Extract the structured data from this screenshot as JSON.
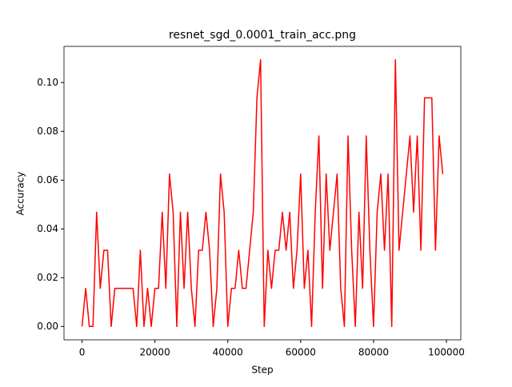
{
  "chart_data": {
    "type": "line",
    "title": "resnet_sgd_0.0001_train_acc.png",
    "x_label": "Step",
    "y_label": "Accuracy",
    "color": "#ff0000",
    "x": [
      0,
      1000,
      2000,
      3000,
      4000,
      5000,
      6000,
      7000,
      8000,
      9000,
      10000,
      11000,
      12000,
      13000,
      14000,
      15000,
      16000,
      17000,
      18000,
      19000,
      20000,
      21000,
      22000,
      23000,
      24000,
      25000,
      26000,
      27000,
      28000,
      29000,
      30000,
      31000,
      32000,
      33000,
      34000,
      35000,
      36000,
      37000,
      38000,
      39000,
      40000,
      41000,
      42000,
      43000,
      44000,
      45000,
      46000,
      47000,
      48000,
      49000,
      50000,
      51000,
      52000,
      53000,
      54000,
      55000,
      56000,
      57000,
      58000,
      59000,
      60000,
      61000,
      62000,
      63000,
      64000,
      65000,
      66000,
      67000,
      68000,
      69000,
      70000,
      71000,
      72000,
      73000,
      74000,
      75000,
      76000,
      77000,
      78000,
      79000,
      80000,
      81000,
      82000,
      83000,
      84000,
      85000,
      86000,
      87000,
      88000,
      89000,
      90000,
      91000,
      92000,
      93000,
      94000,
      95000,
      96000,
      97000,
      98000,
      99000
    ],
    "values": [
      0,
      0.015625,
      0,
      0,
      0.046875,
      0.015625,
      0.03125,
      0.03125,
      0,
      0.015625,
      0.015625,
      0.015625,
      0.015625,
      0.015625,
      0.015625,
      0,
      0.03125,
      0,
      0.015625,
      0,
      0.015625,
      0.015625,
      0.046875,
      0.015625,
      0.0625,
      0.046875,
      0,
      0.046875,
      0.015625,
      0.046875,
      0.015625,
      0,
      0.03125,
      0.03125,
      0.046875,
      0.03125,
      0,
      0.015625,
      0.0625,
      0.046875,
      0,
      0.015625,
      0.015625,
      0.03125,
      0.015625,
      0.015625,
      0.03125,
      0.046875,
      0.09375,
      0.109375,
      0,
      0.03125,
      0.015625,
      0.03125,
      0.03125,
      0.046875,
      0.03125,
      0.046875,
      0.015625,
      0.03125,
      0.0625,
      0.015625,
      0.03125,
      0,
      0.046875,
      0.078125,
      0.015625,
      0.0625,
      0.03125,
      0.046875,
      0.0625,
      0.015625,
      0,
      0.078125,
      0.03125,
      0,
      0.046875,
      0.015625,
      0.078125,
      0.03125,
      0,
      0.046875,
      0.0625,
      0.03125,
      0.0625,
      0,
      0.109375,
      0.03125,
      0.046875,
      0.0625,
      0.078125,
      0.046875,
      0.078125,
      0.03125,
      0.09375,
      0.09375,
      0.09375,
      0.03125,
      0.078125,
      0.0625
    ],
    "xlim": [
      -4950,
      103950
    ],
    "ylim": [
      -0.00547,
      0.11484
    ],
    "xticks": [
      0,
      20000,
      40000,
      60000,
      80000,
      100000
    ],
    "yticks": [
      {
        "value": 0,
        "label": "0.00"
      },
      {
        "value": 0.02,
        "label": "0.02"
      },
      {
        "value": 0.04,
        "label": "0.04"
      },
      {
        "value": 0.06,
        "label": "0.06"
      },
      {
        "value": 0.08,
        "label": "0.08"
      },
      {
        "value": 0.1,
        "label": "0.10"
      }
    ]
  }
}
